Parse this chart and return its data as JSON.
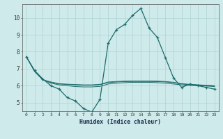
{
  "xlabel": "Humidex (Indice chaleur)",
  "bg_color": "#ceeaea",
  "line_color": "#1e6b6b",
  "grid_color": "#add4d4",
  "xlim": [
    -0.5,
    23.5
  ],
  "ylim": [
    4.5,
    10.8
  ],
  "xticks": [
    0,
    1,
    2,
    3,
    4,
    5,
    6,
    7,
    8,
    9,
    10,
    11,
    12,
    13,
    14,
    15,
    16,
    17,
    18,
    19,
    20,
    21,
    22,
    23
  ],
  "yticks": [
    5,
    6,
    7,
    8,
    9,
    10
  ],
  "main_series": {
    "x": [
      0,
      1,
      2,
      3,
      4,
      5,
      6,
      7,
      8,
      9,
      10,
      11,
      12,
      13,
      14,
      15,
      16,
      17,
      18,
      19,
      20,
      21,
      22,
      23
    ],
    "y": [
      7.7,
      6.9,
      6.4,
      6.0,
      5.8,
      5.3,
      5.1,
      4.65,
      4.45,
      5.2,
      8.5,
      9.3,
      9.6,
      10.15,
      10.55,
      9.4,
      8.85,
      7.65,
      6.45,
      5.9,
      6.1,
      6.0,
      5.9,
      5.8
    ]
  },
  "flat_series": [
    {
      "x": [
        0,
        1,
        2,
        3,
        4,
        5,
        6,
        7,
        8,
        9,
        10,
        11,
        12,
        13,
        14,
        15,
        16,
        17,
        18,
        19,
        20,
        21,
        22,
        23
      ],
      "y": [
        7.7,
        6.85,
        6.35,
        6.15,
        6.05,
        6.0,
        5.95,
        5.93,
        5.93,
        5.96,
        6.1,
        6.15,
        6.18,
        6.2,
        6.2,
        6.2,
        6.18,
        6.15,
        6.1,
        6.05,
        6.02,
        6.0,
        5.98,
        5.95
      ]
    },
    {
      "x": [
        0,
        1,
        2,
        3,
        4,
        5,
        6,
        7,
        8,
        9,
        10,
        11,
        12,
        13,
        14,
        15,
        16,
        17,
        18,
        19,
        20,
        21,
        22,
        23
      ],
      "y": [
        7.7,
        6.85,
        6.35,
        6.2,
        6.1,
        6.07,
        6.05,
        6.03,
        6.03,
        6.06,
        6.18,
        6.22,
        6.24,
        6.25,
        6.25,
        6.25,
        6.24,
        6.22,
        6.18,
        6.1,
        6.06,
        6.04,
        6.02,
        5.98
      ]
    },
    {
      "x": [
        0,
        1,
        2,
        3,
        4,
        5,
        6,
        7,
        8,
        9,
        10,
        11,
        12,
        13,
        14,
        15,
        16,
        17,
        18,
        19,
        20,
        21,
        22,
        23
      ],
      "y": [
        7.7,
        6.85,
        6.35,
        6.22,
        6.12,
        6.09,
        6.07,
        6.05,
        6.05,
        6.08,
        6.22,
        6.25,
        6.27,
        6.28,
        6.28,
        6.28,
        6.27,
        6.25,
        6.2,
        6.12,
        6.08,
        6.05,
        6.03,
        6.0
      ]
    }
  ]
}
